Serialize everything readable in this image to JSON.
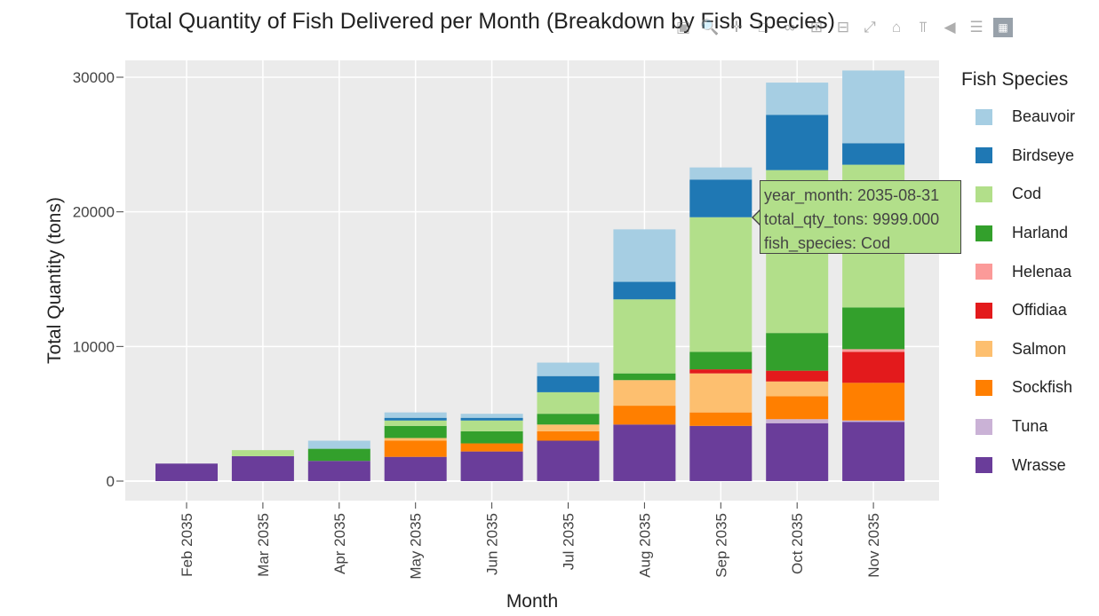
{
  "title": "Total Quantity of Fish Delivered per Month (Breakdown by Fish Species)",
  "modebar": [
    "camera-icon",
    "zoom-icon",
    "pan-icon",
    "select-icon",
    "lasso-icon",
    "zoom-in-icon",
    "zoom-out-icon",
    "autoscale-icon",
    "reset-icon",
    "spike-icon",
    "hover-closest-icon",
    "hover-compare-icon",
    "plotly-logo-icon"
  ],
  "colors": {
    "Beauvoir": "#a6cee3",
    "Birdseye": "#1f78b4",
    "Cod": "#b2df8a",
    "Harland": "#33a02c",
    "Helenaa": "#fb9a99",
    "Offidiaa": "#e31a1c",
    "Salmon": "#fdbf6f",
    "Sockfish": "#ff7f00",
    "Tuna": "#cab2d6",
    "Wrasse": "#6a3d9a"
  },
  "tooltip": {
    "line1": "year_month: 2035-08-31",
    "line2": "total_qty_tons:  9999.000",
    "line3": "fish_species: Cod"
  },
  "chart_data": {
    "type": "bar",
    "stacked": true,
    "xlabel": "Month",
    "ylabel": "Total Quantity (tons)",
    "legend_title": "Fish Species",
    "legend_position": "right",
    "ylim": [
      -1500,
      31500
    ],
    "yticks": [
      0,
      10000,
      20000,
      30000
    ],
    "grid": true,
    "categories": [
      "Feb 2035",
      "Mar 2035",
      "Apr 2035",
      "May 2035",
      "Jun 2035",
      "Jul 2035",
      "Aug 2035",
      "Sep 2035",
      "Oct 2035",
      "Nov 2035"
    ],
    "series": [
      {
        "name": "Wrasse",
        "values": [
          1300,
          1850,
          1500,
          1800,
          2200,
          3000,
          4200,
          4100,
          4300,
          4400
        ]
      },
      {
        "name": "Tuna",
        "values": [
          0,
          0,
          0,
          0,
          0,
          0,
          0,
          0,
          300,
          100
        ]
      },
      {
        "name": "Sockfish",
        "values": [
          0,
          0,
          0,
          1200,
          600,
          700,
          1400,
          1000,
          1700,
          2800
        ]
      },
      {
        "name": "Salmon",
        "values": [
          0,
          0,
          0,
          200,
          0,
          500,
          1900,
          2900,
          1100,
          0
        ]
      },
      {
        "name": "Offidiaa",
        "values": [
          0,
          0,
          0,
          0,
          0,
          0,
          0,
          300,
          800,
          2300
        ]
      },
      {
        "name": "Helenaa",
        "values": [
          0,
          0,
          0,
          0,
          0,
          0,
          0,
          0,
          0,
          200
        ]
      },
      {
        "name": "Harland",
        "values": [
          0,
          0,
          900,
          900,
          900,
          800,
          500,
          1300,
          2800,
          3100
        ]
      },
      {
        "name": "Cod",
        "values": [
          0,
          450,
          0,
          400,
          800,
          1600,
          5500,
          9999,
          12100,
          10600
        ]
      },
      {
        "name": "Birdseye",
        "values": [
          0,
          0,
          0,
          200,
          200,
          1200,
          1300,
          2800,
          4100,
          1600
        ]
      },
      {
        "name": "Beauvoir",
        "values": [
          0,
          0,
          600,
          400,
          300,
          1000,
          3900,
          900,
          2400,
          5400
        ]
      }
    ]
  }
}
